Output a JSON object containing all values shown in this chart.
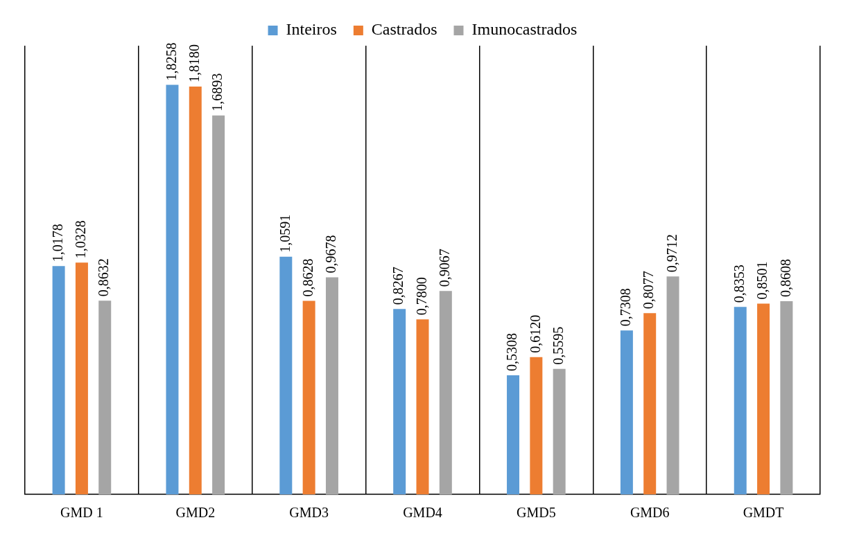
{
  "chart_data": {
    "type": "bar",
    "categories": [
      "GMD 1",
      "GMD2",
      "GMD3",
      "GMD4",
      "GMD5",
      "GMD6",
      "GMDT"
    ],
    "series": [
      {
        "name": "Inteiros",
        "color": "#5b9bd5",
        "values": [
          1.0178,
          1.8258,
          1.0591,
          0.8267,
          0.5308,
          0.7308,
          0.8353
        ],
        "value_labels": [
          "1,0178",
          "1,8258",
          "1,0591",
          "0,8267",
          "0,5308",
          "0,7308",
          "0,8353"
        ]
      },
      {
        "name": "Castrados",
        "color": "#ed7d31",
        "values": [
          1.0328,
          1.818,
          0.8628,
          0.78,
          0.612,
          0.8077,
          0.8501
        ],
        "value_labels": [
          "1,0328",
          "1,8180",
          "0,8628",
          "0,7800",
          "0,6120",
          "0,8077",
          "0,8501"
        ]
      },
      {
        "name": "Imunocastrados",
        "color": "#a5a5a5",
        "values": [
          0.8632,
          1.6893,
          0.9678,
          0.9067,
          0.5595,
          0.9712,
          0.8608
        ],
        "value_labels": [
          "0,8632",
          "1,6893",
          "0,9678",
          "0,9067",
          "0,5595",
          "0,9712",
          "0,8608"
        ]
      }
    ],
    "tick_labels": "x",
    "grid": "x",
    "legend": "top"
  }
}
